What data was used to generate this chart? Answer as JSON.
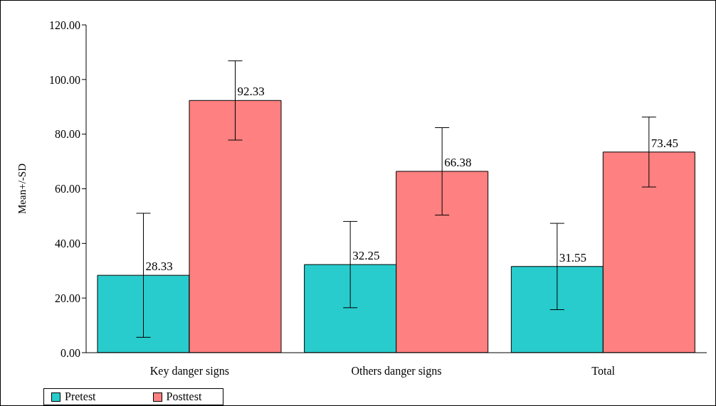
{
  "chart_data": {
    "type": "bar",
    "ylabel": "Mean+/-SD",
    "categories": [
      "Key danger signs",
      "Others danger signs",
      "Total"
    ],
    "series": [
      {
        "name": "Pretest",
        "color": "#29cccc",
        "values": [
          28.33,
          32.25,
          31.55
        ],
        "errors": [
          22.7,
          15.8,
          15.8
        ]
      },
      {
        "name": "Posttest",
        "color": "#ff8080",
        "values": [
          92.33,
          66.38,
          73.45
        ],
        "errors": [
          14.5,
          16,
          12.8
        ]
      }
    ],
    "ylim": [
      0,
      120
    ],
    "yticks": [
      {
        "value": 0,
        "label": "0.00"
      },
      {
        "value": 20,
        "label": "20.00"
      },
      {
        "value": 40,
        "label": "40.00"
      },
      {
        "value": 60,
        "label": "60.00"
      },
      {
        "value": 80,
        "label": "80.00"
      },
      {
        "value": 100,
        "label": "100.00"
      },
      {
        "value": 120,
        "label": "120.00"
      }
    ],
    "data_labels": true,
    "grid": false,
    "legend": "bottom"
  }
}
